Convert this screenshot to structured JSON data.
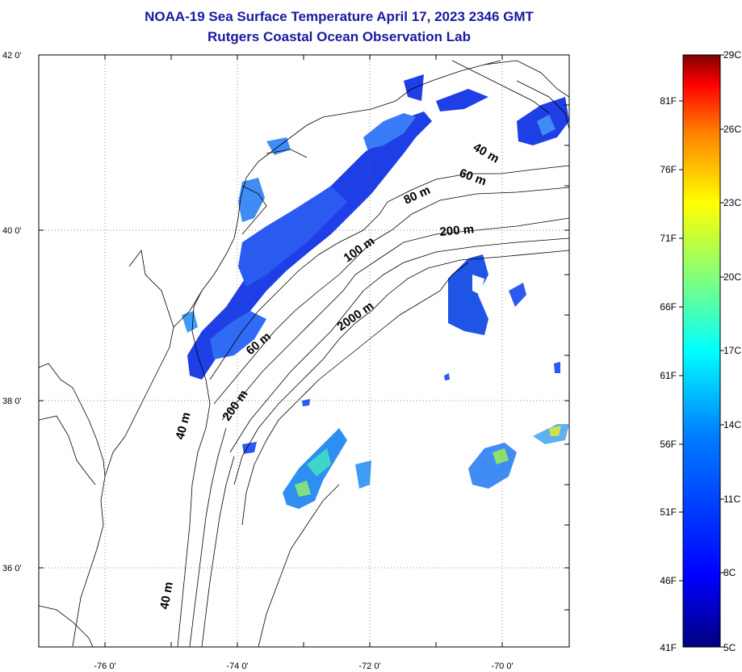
{
  "title": {
    "line1": "NOAA-19 Sea Surface Temperature April 17, 2023 2346 GMT",
    "line2": "Rutgers Coastal Ocean Observation Lab"
  },
  "map": {
    "lat_labels": [
      "42 0'",
      "40 0'",
      "38 0'",
      "36 0'"
    ],
    "lon_labels": [
      "-76 0'",
      "-74 0'",
      "-72 0'",
      "-70 0'"
    ],
    "contour_labels": [
      "40 m",
      "60 m",
      "80 m",
      "200 m",
      "100 m",
      "2000 m",
      "60 m",
      "200 m",
      "40 m",
      "40 m"
    ]
  },
  "colorbar": {
    "celsius_labels": [
      "29C",
      "26C",
      "23C",
      "20C",
      "17C",
      "14C",
      "11C",
      "8C",
      "5C"
    ],
    "fahrenheit_labels": [
      "81F",
      "76F",
      "71F",
      "66F",
      "61F",
      "56F",
      "51F",
      "46F",
      "41F"
    ],
    "colors": [
      "#00007f",
      "#0000ff",
      "#007fff",
      "#00ffff",
      "#7fff7f",
      "#ffff00",
      "#ff7f00",
      "#ff0000",
      "#7f0000"
    ]
  }
}
